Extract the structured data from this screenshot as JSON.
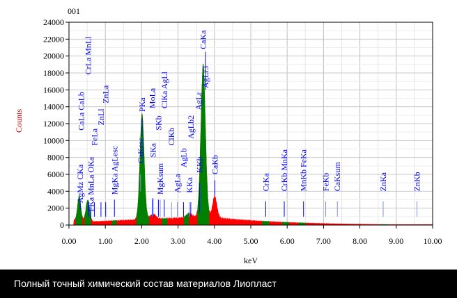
{
  "chart_data": {
    "type": "area",
    "title": "001",
    "xlabel": "keV",
    "ylabel": "Counts",
    "xlim": [
      0,
      10
    ],
    "ylim": [
      0,
      24000
    ],
    "grid": true,
    "x_ticks": [
      "0.00",
      "1.00",
      "2.00",
      "3.00",
      "4.00",
      "5.00",
      "6.00",
      "7.00",
      "8.00",
      "9.00",
      "10.00"
    ],
    "y_ticks": [
      "0",
      "2000",
      "4000",
      "6000",
      "8000",
      "10000",
      "12000",
      "14000",
      "16000",
      "18000",
      "20000",
      "22000",
      "24000"
    ],
    "colors": {
      "spectrum": "#ff0000",
      "roi": "#008000",
      "markers": "#0000ff",
      "ylabel": "#cc0000"
    },
    "peaks": [
      {
        "keV": 0.28,
        "counts": 2900,
        "width": 0.045
      },
      {
        "keV": 0.52,
        "counts": 2600,
        "width": 0.05
      },
      {
        "keV": 2.01,
        "counts": 12600,
        "width": 0.06
      },
      {
        "keV": 3.69,
        "counts": 18200,
        "width": 0.065
      },
      {
        "keV": 4.01,
        "counts": 2500,
        "width": 0.06
      },
      {
        "keV": 2.31,
        "counts": 600,
        "width": 0.08
      },
      {
        "keV": 3.31,
        "counts": 500,
        "width": 0.08
      }
    ],
    "roi_ranges": [
      [
        0.18,
        0.38
      ],
      [
        0.42,
        0.62
      ],
      [
        1.18,
        1.32
      ],
      [
        1.85,
        2.2
      ],
      [
        2.55,
        2.7
      ],
      [
        3.15,
        3.3
      ],
      [
        3.52,
        3.85
      ],
      [
        5.3,
        5.5
      ],
      [
        5.85,
        6.05
      ],
      [
        6.3,
        6.5
      ],
      [
        8.55,
        8.75
      ]
    ],
    "markers": [
      {
        "label": "AgMz CKa",
        "keV": 0.31,
        "count": 2600,
        "line": [
          1800,
          2900
        ],
        "faint": false
      },
      {
        "label": "FKa MnLa OKa",
        "keV": 0.6,
        "count": 1600,
        "line": [
          800,
          2200
        ],
        "faint": false
      },
      {
        "label": "CaLa CaLb",
        "keV": 0.34,
        "count": 11200,
        "line": null,
        "faint": false
      },
      {
        "label": "CrLa MnLl",
        "keV": 0.53,
        "count": 17800,
        "line": [
          1000,
          2700
        ],
        "faint": false
      },
      {
        "label": "FeLa",
        "keV": 0.7,
        "count": 9400,
        "line": [
          1000,
          2700
        ],
        "faint": false
      },
      {
        "label": "ZnLl",
        "keV": 0.88,
        "count": 11800,
        "line": [
          1000,
          2700
        ],
        "faint": false
      },
      {
        "label": "ZnLa",
        "keV": 1.01,
        "count": 14400,
        "line": [
          1000,
          2700
        ],
        "faint": false
      },
      {
        "label": "MgKa AgLesc",
        "keV": 1.25,
        "count": 3600,
        "line": [
          1000,
          3000
        ],
        "faint": false
      },
      {
        "label": "CaKesc",
        "keV": 1.97,
        "count": 7300,
        "line": [
          4000,
          6000
        ],
        "faint": true
      },
      {
        "label": "PKa",
        "keV": 2.01,
        "count": 13400,
        "line": [
          10500,
          12600
        ],
        "faint": false
      },
      {
        "label": "SKa",
        "keV": 2.31,
        "count": 8000,
        "line": [
          1000,
          3200
        ],
        "faint": false
      },
      {
        "label": "MoLa",
        "keV": 2.29,
        "count": 13800,
        "line": [
          1000,
          3000
        ],
        "faint": true
      },
      {
        "label": "MgKsum",
        "keV": 2.51,
        "count": 3600,
        "line": [
          1000,
          3000
        ],
        "faint": true
      },
      {
        "label": "SKb",
        "keV": 2.46,
        "count": 11200,
        "line": [
          1000,
          3000
        ],
        "faint": false
      },
      {
        "label": "ClKa AgLl",
        "keV": 2.62,
        "count": 13800,
        "line": [
          1000,
          3000
        ],
        "faint": false
      },
      {
        "label": "ClKb",
        "keV": 2.82,
        "count": 9400,
        "line": [
          1000,
          2700
        ],
        "faint": true
      },
      {
        "label": "AgLa",
        "keV": 2.98,
        "count": 3800,
        "line": [
          1000,
          2700
        ],
        "faint": true
      },
      {
        "label": "AgLb",
        "keV": 3.15,
        "count": 6800,
        "line": [
          1000,
          2700
        ],
        "faint": false
      },
      {
        "label": "KKa",
        "keV": 3.31,
        "count": 3800,
        "line": [
          1000,
          2700
        ],
        "faint": true
      },
      {
        "label": "AgLb2",
        "keV": 3.35,
        "count": 10200,
        "line": [
          1000,
          2700
        ],
        "faint": false
      },
      {
        "label": "KKb",
        "keV": 3.59,
        "count": 6200,
        "line": [
          1500,
          5000
        ],
        "faint": false
      },
      {
        "label": "AgLr",
        "keV": 3.56,
        "count": 13600,
        "line": null,
        "faint": false
      },
      {
        "label": "AgLr3",
        "keV": 3.75,
        "count": 16200,
        "line": [
          16000,
          20500
        ],
        "faint": false
      },
      {
        "label": "CaKa",
        "keV": 3.69,
        "count": 20800,
        "line": null,
        "faint": false
      },
      {
        "label": "CaKb",
        "keV": 4.01,
        "count": 6000,
        "line": [
          3500,
          5300
        ],
        "faint": false
      },
      {
        "label": "CrKa",
        "keV": 5.41,
        "count": 4000,
        "line": [
          1000,
          2800
        ],
        "faint": false
      },
      {
        "label": "CrKb MnKa",
        "keV": 5.92,
        "count": 4000,
        "line": [
          1000,
          2800
        ],
        "faint": false
      },
      {
        "label": "MnKb FeKa",
        "keV": 6.45,
        "count": 4000,
        "line": [
          1000,
          2800
        ],
        "faint": false
      },
      {
        "label": "FeKb",
        "keV": 7.06,
        "count": 4000,
        "line": [
          1000,
          2800
        ],
        "faint": true
      },
      {
        "label": "CaKsum",
        "keV": 7.38,
        "count": 4000,
        "line": [
          1000,
          2800
        ],
        "faint": true
      },
      {
        "label": "ZnKa",
        "keV": 8.64,
        "count": 4000,
        "line": [
          1000,
          2800
        ],
        "faint": true
      },
      {
        "label": "ZnKb",
        "keV": 9.57,
        "count": 4000,
        "line": [
          1000,
          2800
        ],
        "faint": true
      }
    ]
  },
  "caption": "Полный точный химический состав материалов Лиопласт"
}
